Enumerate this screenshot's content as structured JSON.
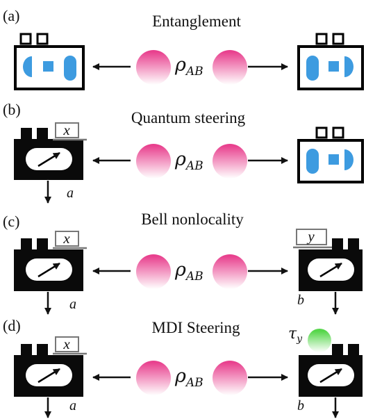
{
  "panels": [
    {
      "label": "(a)",
      "title": "Entanglement",
      "state": "ρ",
      "state_sub": "AB"
    },
    {
      "label": "(b)",
      "title": "Quantum steering",
      "state": "ρ",
      "state_sub": "AB",
      "alice_input": "x",
      "alice_output": "a"
    },
    {
      "label": "(c)",
      "title": "Bell nonlocality",
      "state": "ρ",
      "state_sub": "AB",
      "alice_input": "x",
      "alice_output": "a",
      "bob_input": "y",
      "bob_output": "b"
    },
    {
      "label": "(d)",
      "title": "MDI Steering",
      "state": "ρ",
      "state_sub": "AB",
      "alice_input": "x",
      "alice_output": "a",
      "bob_output": "b",
      "bob_quantum_input": "τ",
      "bob_quantum_input_sub": "y"
    }
  ],
  "colors": {
    "particle_top": "#e8408e",
    "particle_bottom": "#ffffff",
    "trusted_device": "#3d9be0",
    "quantum_input": "#55d64a",
    "black_box": "#0a0a0a"
  },
  "icons": [
    "trusted-device-icon",
    "black-box-device-icon",
    "pointer-meter-icon",
    "input-register-icon"
  ]
}
